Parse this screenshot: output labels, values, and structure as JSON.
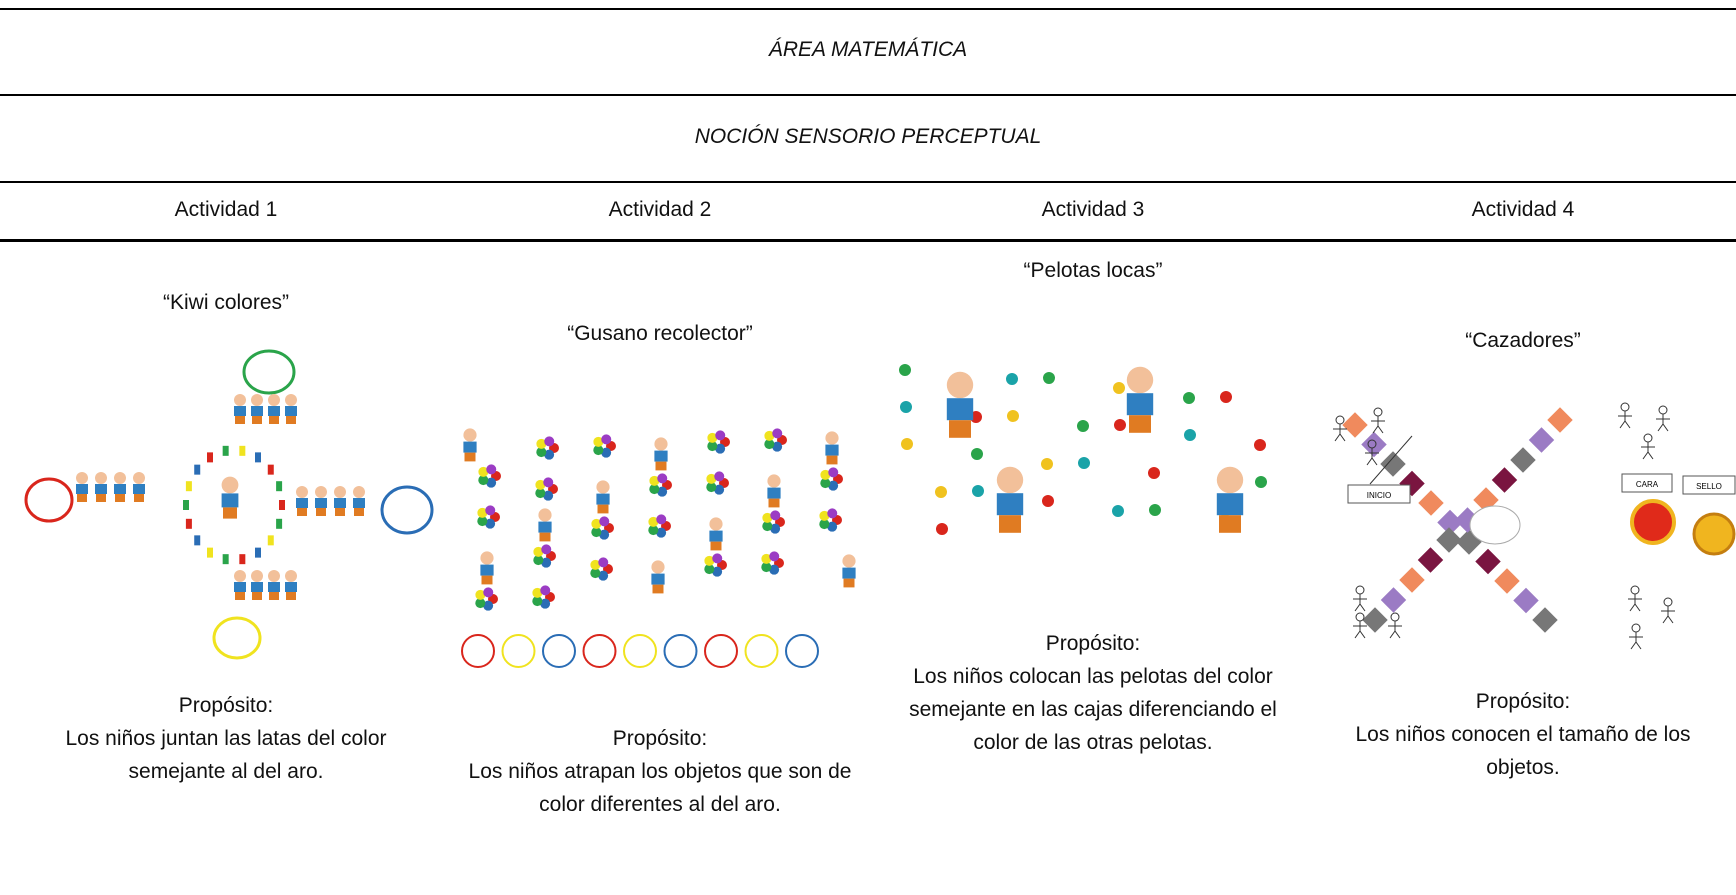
{
  "header": {
    "title": "ÁREA MATEMÁTICA",
    "subtitle": "NOCIÓN SENSORIO PERCEPTUAL"
  },
  "activities": [
    {
      "label": "Actividad 1",
      "name": "“Kiwi colores”",
      "purpose_label": "Propósito:",
      "purpose": "Los niños juntan las latas del color semejante al del aro."
    },
    {
      "label": "Actividad 2",
      "name": "“Gusano recolector”",
      "purpose_label": "Propósito:",
      "purpose": "Los niños atrapan los objetos que son de color diferentes al del aro."
    },
    {
      "label": "Actividad 3",
      "name": "“Pelotas locas”",
      "purpose_label": "Propósito:",
      "purpose": "Los niños colocan las pelotas del color semejante en las cajas diferenciando el color de las otras pelotas."
    },
    {
      "label": "Actividad 4",
      "name": "“Cazadores”",
      "purpose_label": "Propósito:",
      "purpose": "Los niños conocen el tamaño de los objetos.",
      "image_labels": [
        "INICIO",
        "CARA",
        "SELLO"
      ]
    }
  ]
}
